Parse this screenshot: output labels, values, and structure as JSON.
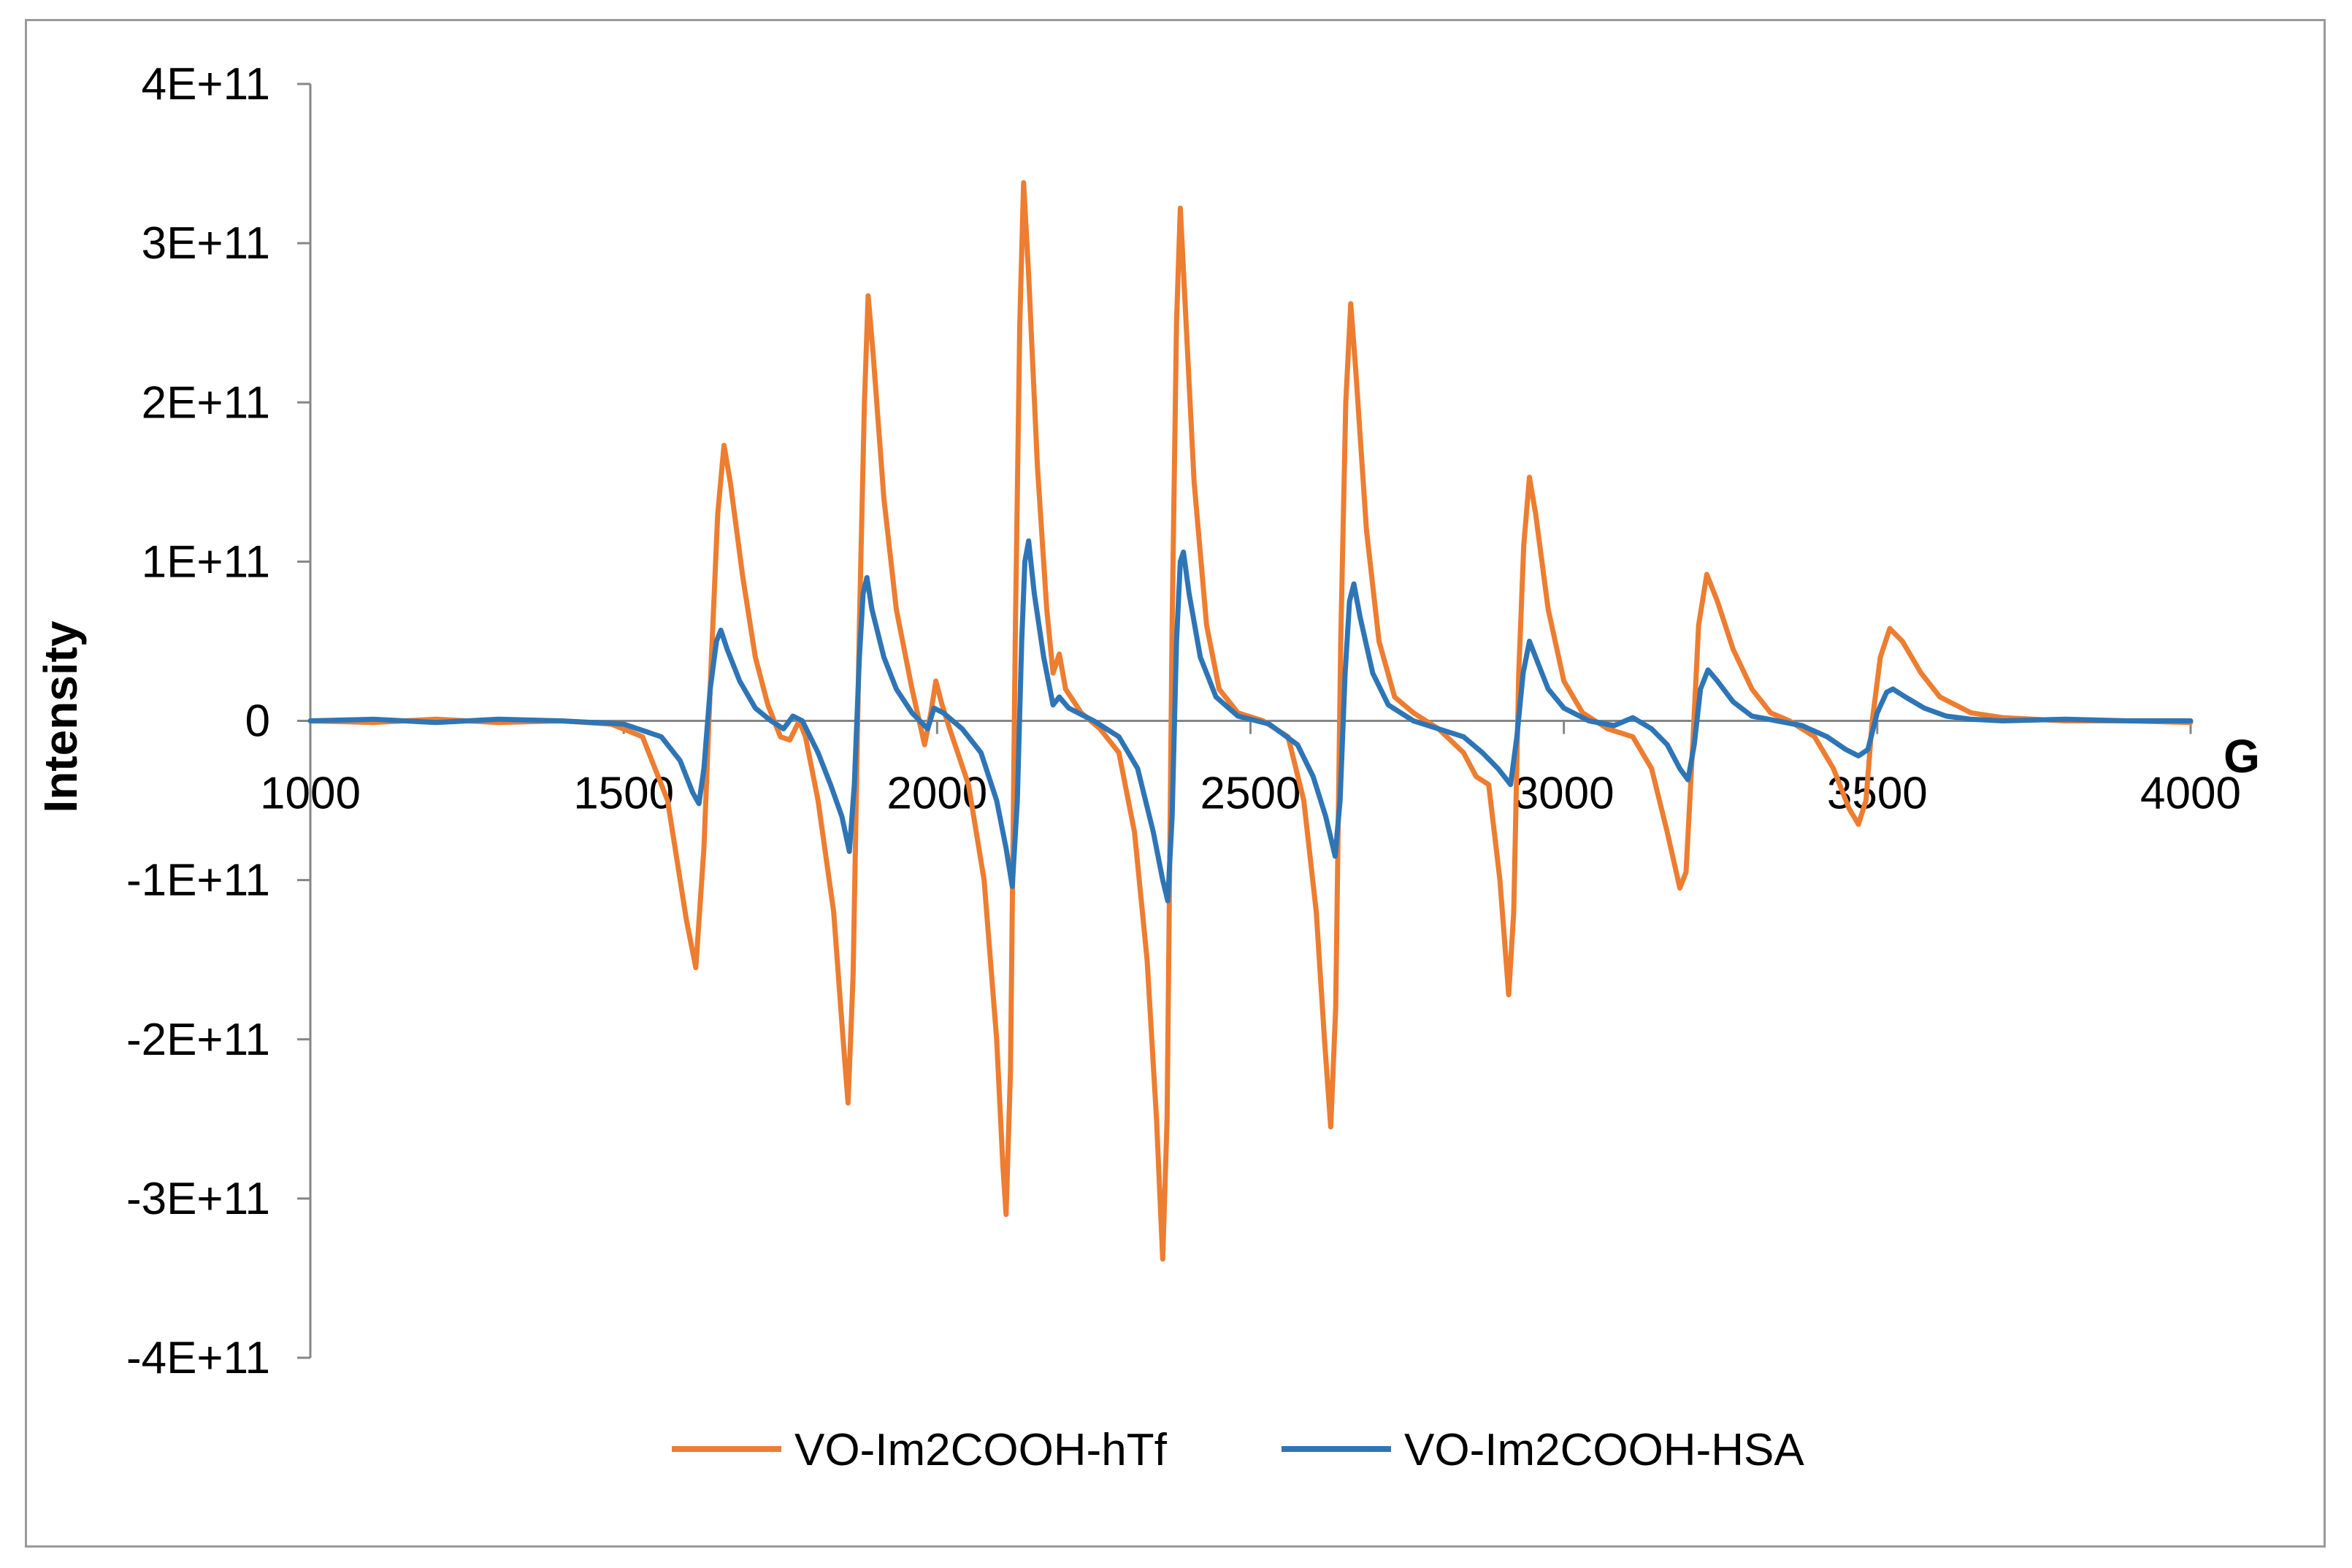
{
  "chart_data": {
    "type": "line",
    "title": "",
    "xlabel": "G",
    "ylabel": "Intensity",
    "xlim": [
      1000,
      4000
    ],
    "ylim": [
      -400000000000,
      400000000000
    ],
    "x_ticks": [
      1000,
      1500,
      2000,
      2500,
      3000,
      3500,
      4000
    ],
    "x_tick_labels": [
      "1000",
      "1500",
      "2000",
      "2500",
      "3000",
      "3500",
      "4000"
    ],
    "y_ticks": [
      400000000000,
      300000000000,
      200000000000,
      100000000000,
      0,
      -100000000000,
      -200000000000,
      -300000000000,
      -400000000000
    ],
    "y_tick_labels": [
      "4E+11",
      "3E+11",
      "2E+11",
      "1E+11",
      "0",
      "-1E+11",
      "-2E+11",
      "-3E+11",
      "-4E+11"
    ],
    "grid": false,
    "legend_position": "bottom",
    "series": [
      {
        "name": "VO-Im2COOH-hTf",
        "color": "#ED7D31",
        "points": [
          [
            1000,
            0
          ],
          [
            1100,
            -1000000000
          ],
          [
            1200,
            1000000000
          ],
          [
            1300,
            -1000000000
          ],
          [
            1400,
            0
          ],
          [
            1480,
            -2000000000
          ],
          [
            1530,
            -10000000000
          ],
          [
            1570,
            -50000000000
          ],
          [
            1600,
            -125000000000
          ],
          [
            1615,
            -155000000000
          ],
          [
            1628,
            -80000000000
          ],
          [
            1640,
            40000000000
          ],
          [
            1650,
            130000000000
          ],
          [
            1660,
            173000000000
          ],
          [
            1670,
            150000000000
          ],
          [
            1690,
            90000000000
          ],
          [
            1710,
            40000000000
          ],
          [
            1730,
            10000000000
          ],
          [
            1750,
            -10000000000
          ],
          [
            1765,
            -12000000000
          ],
          [
            1780,
            0
          ],
          [
            1790,
            -10000000000
          ],
          [
            1810,
            -50000000000
          ],
          [
            1835,
            -120000000000
          ],
          [
            1850,
            -200000000000
          ],
          [
            1858,
            -240000000000
          ],
          [
            1866,
            -160000000000
          ],
          [
            1876,
            60000000000
          ],
          [
            1884,
            200000000000
          ],
          [
            1890,
            267000000000
          ],
          [
            1898,
            230000000000
          ],
          [
            1915,
            140000000000
          ],
          [
            1935,
            70000000000
          ],
          [
            1960,
            20000000000
          ],
          [
            1980,
            -15000000000
          ],
          [
            1990,
            5000000000
          ],
          [
            1998,
            25000000000
          ],
          [
            2008,
            10000000000
          ],
          [
            2020,
            -5000000000
          ],
          [
            2050,
            -40000000000
          ],
          [
            2075,
            -100000000000
          ],
          [
            2095,
            -200000000000
          ],
          [
            2105,
            -280000000000
          ],
          [
            2110,
            -310000000000
          ],
          [
            2117,
            -220000000000
          ],
          [
            2125,
            60000000000
          ],
          [
            2132,
            250000000000
          ],
          [
            2138,
            338000000000
          ],
          [
            2146,
            280000000000
          ],
          [
            2160,
            160000000000
          ],
          [
            2175,
            70000000000
          ],
          [
            2185,
            30000000000
          ],
          [
            2195,
            42000000000
          ],
          [
            2205,
            20000000000
          ],
          [
            2230,
            5000000000
          ],
          [
            2260,
            -5000000000
          ],
          [
            2290,
            -20000000000
          ],
          [
            2315,
            -70000000000
          ],
          [
            2335,
            -150000000000
          ],
          [
            2350,
            -250000000000
          ],
          [
            2360,
            -338000000000
          ],
          [
            2367,
            -250000000000
          ],
          [
            2375,
            60000000000
          ],
          [
            2382,
            250000000000
          ],
          [
            2388,
            322000000000
          ],
          [
            2396,
            260000000000
          ],
          [
            2410,
            150000000000
          ],
          [
            2430,
            60000000000
          ],
          [
            2450,
            20000000000
          ],
          [
            2480,
            5000000000
          ],
          [
            2520,
            0
          ],
          [
            2560,
            -10000000000
          ],
          [
            2585,
            -50000000000
          ],
          [
            2605,
            -120000000000
          ],
          [
            2618,
            -200000000000
          ],
          [
            2628,
            -255000000000
          ],
          [
            2636,
            -180000000000
          ],
          [
            2644,
            50000000000
          ],
          [
            2652,
            200000000000
          ],
          [
            2660,
            262000000000
          ],
          [
            2668,
            220000000000
          ],
          [
            2685,
            120000000000
          ],
          [
            2705,
            50000000000
          ],
          [
            2730,
            15000000000
          ],
          [
            2760,
            5000000000
          ],
          [
            2800,
            -5000000000
          ],
          [
            2840,
            -20000000000
          ],
          [
            2860,
            -35000000000
          ],
          [
            2880,
            -40000000000
          ],
          [
            2898,
            -100000000000
          ],
          [
            2912,
            -172000000000
          ],
          [
            2920,
            -120000000000
          ],
          [
            2928,
            30000000000
          ],
          [
            2936,
            110000000000
          ],
          [
            2945,
            153000000000
          ],
          [
            2955,
            130000000000
          ],
          [
            2975,
            70000000000
          ],
          [
            3000,
            25000000000
          ],
          [
            3030,
            5000000000
          ],
          [
            3070,
            -5000000000
          ],
          [
            3110,
            -10000000000
          ],
          [
            3140,
            -30000000000
          ],
          [
            3165,
            -70000000000
          ],
          [
            3185,
            -105000000000
          ],
          [
            3195,
            -95000000000
          ],
          [
            3205,
            -20000000000
          ],
          [
            3215,
            60000000000
          ],
          [
            3228,
            92000000000
          ],
          [
            3245,
            75000000000
          ],
          [
            3270,
            45000000000
          ],
          [
            3300,
            20000000000
          ],
          [
            3330,
            5000000000
          ],
          [
            3360,
            0
          ],
          [
            3400,
            -10000000000
          ],
          [
            3430,
            -30000000000
          ],
          [
            3455,
            -55000000000
          ],
          [
            3470,
            -65000000000
          ],
          [
            3482,
            -50000000000
          ],
          [
            3492,
            0
          ],
          [
            3505,
            40000000000
          ],
          [
            3520,
            58000000000
          ],
          [
            3540,
            50000000000
          ],
          [
            3570,
            30000000000
          ],
          [
            3600,
            15000000000
          ],
          [
            3650,
            5000000000
          ],
          [
            3700,
            2000000000
          ],
          [
            3800,
            0
          ],
          [
            3900,
            0
          ],
          [
            4000,
            -1000000000
          ]
        ]
      },
      {
        "name": "VO-Im2COOH-HSA",
        "color": "#2E75B6",
        "points": [
          [
            1000,
            0
          ],
          [
            1100,
            1000000000
          ],
          [
            1200,
            -1000000000
          ],
          [
            1300,
            1000000000
          ],
          [
            1400,
            0
          ],
          [
            1500,
            -2000000000
          ],
          [
            1560,
            -10000000000
          ],
          [
            1590,
            -25000000000
          ],
          [
            1610,
            -45000000000
          ],
          [
            1620,
            -52000000000
          ],
          [
            1628,
            -30000000000
          ],
          [
            1638,
            20000000000
          ],
          [
            1648,
            50000000000
          ],
          [
            1655,
            57000000000
          ],
          [
            1665,
            45000000000
          ],
          [
            1685,
            25000000000
          ],
          [
            1710,
            8000000000
          ],
          [
            1735,
            0
          ],
          [
            1755,
            -5000000000
          ],
          [
            1770,
            3000000000
          ],
          [
            1785,
            0
          ],
          [
            1810,
            -20000000000
          ],
          [
            1830,
            -40000000000
          ],
          [
            1848,
            -60000000000
          ],
          [
            1860,
            -82000000000
          ],
          [
            1868,
            -40000000000
          ],
          [
            1876,
            40000000000
          ],
          [
            1882,
            80000000000
          ],
          [
            1888,
            90000000000
          ],
          [
            1896,
            70000000000
          ],
          [
            1915,
            40000000000
          ],
          [
            1935,
            20000000000
          ],
          [
            1960,
            5000000000
          ],
          [
            1985,
            -5000000000
          ],
          [
            1995,
            8000000000
          ],
          [
            2010,
            5000000000
          ],
          [
            2040,
            -5000000000
          ],
          [
            2070,
            -20000000000
          ],
          [
            2095,
            -50000000000
          ],
          [
            2110,
            -80000000000
          ],
          [
            2120,
            -104000000000
          ],
          [
            2128,
            -50000000000
          ],
          [
            2135,
            50000000000
          ],
          [
            2140,
            100000000000
          ],
          [
            2146,
            113000000000
          ],
          [
            2155,
            80000000000
          ],
          [
            2170,
            40000000000
          ],
          [
            2185,
            10000000000
          ],
          [
            2195,
            15000000000
          ],
          [
            2210,
            8000000000
          ],
          [
            2250,
            0
          ],
          [
            2290,
            -10000000000
          ],
          [
            2320,
            -30000000000
          ],
          [
            2345,
            -70000000000
          ],
          [
            2360,
            -100000000000
          ],
          [
            2368,
            -113000000000
          ],
          [
            2375,
            -60000000000
          ],
          [
            2382,
            50000000000
          ],
          [
            2388,
            100000000000
          ],
          [
            2393,
            106000000000
          ],
          [
            2402,
            80000000000
          ],
          [
            2420,
            40000000000
          ],
          [
            2445,
            15000000000
          ],
          [
            2480,
            3000000000
          ],
          [
            2530,
            -2000000000
          ],
          [
            2575,
            -15000000000
          ],
          [
            2600,
            -35000000000
          ],
          [
            2620,
            -60000000000
          ],
          [
            2635,
            -85000000000
          ],
          [
            2643,
            -50000000000
          ],
          [
            2651,
            30000000000
          ],
          [
            2658,
            75000000000
          ],
          [
            2665,
            86000000000
          ],
          [
            2675,
            65000000000
          ],
          [
            2695,
            30000000000
          ],
          [
            2720,
            10000000000
          ],
          [
            2760,
            0
          ],
          [
            2800,
            -5000000000
          ],
          [
            2840,
            -10000000000
          ],
          [
            2870,
            -20000000000
          ],
          [
            2895,
            -30000000000
          ],
          [
            2915,
            -40000000000
          ],
          [
            2925,
            -10000000000
          ],
          [
            2935,
            30000000000
          ],
          [
            2945,
            50000000000
          ],
          [
            2955,
            40000000000
          ],
          [
            2975,
            20000000000
          ],
          [
            3000,
            8000000000
          ],
          [
            3040,
            0
          ],
          [
            3080,
            -3000000000
          ],
          [
            3110,
            2000000000
          ],
          [
            3140,
            -5000000000
          ],
          [
            3165,
            -15000000000
          ],
          [
            3185,
            -30000000000
          ],
          [
            3198,
            -37000000000
          ],
          [
            3208,
            -15000000000
          ],
          [
            3218,
            20000000000
          ],
          [
            3230,
            32000000000
          ],
          [
            3245,
            25000000000
          ],
          [
            3270,
            12000000000
          ],
          [
            3300,
            3000000000
          ],
          [
            3340,
            0
          ],
          [
            3380,
            -3000000000
          ],
          [
            3420,
            -10000000000
          ],
          [
            3450,
            -18000000000
          ],
          [
            3470,
            -22000000000
          ],
          [
            3485,
            -18000000000
          ],
          [
            3500,
            5000000000
          ],
          [
            3515,
            18000000000
          ],
          [
            3525,
            20000000000
          ],
          [
            3545,
            15000000000
          ],
          [
            3575,
            8000000000
          ],
          [
            3610,
            3000000000
          ],
          [
            3650,
            1000000000
          ],
          [
            3700,
            0
          ],
          [
            3800,
            1000000000
          ],
          [
            3900,
            0
          ],
          [
            4000,
            0
          ]
        ]
      }
    ]
  }
}
